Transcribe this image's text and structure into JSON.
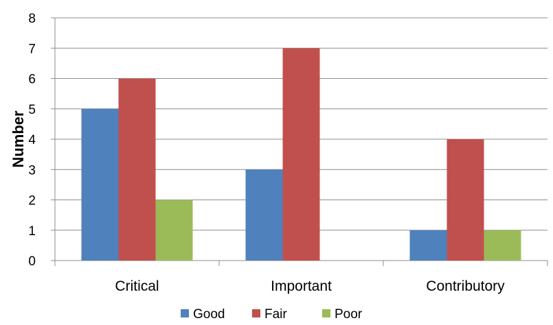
{
  "chart_data": {
    "type": "bar",
    "title": "",
    "xlabel": "",
    "ylabel": "Number",
    "ylim": [
      0,
      8
    ],
    "yticks": [
      0,
      1,
      2,
      3,
      4,
      5,
      6,
      7,
      8
    ],
    "grid": true,
    "legend_position": "bottom",
    "categories": [
      "Critical",
      "Important",
      "Contributory"
    ],
    "series": [
      {
        "name": "Good",
        "values": [
          5,
          3,
          1
        ],
        "color": "#4F81BD"
      },
      {
        "name": "Fair",
        "values": [
          6,
          7,
          4
        ],
        "color": "#C0504D"
      },
      {
        "name": "Poor",
        "values": [
          2,
          0,
          1
        ],
        "color": "#9BBB59"
      }
    ]
  }
}
